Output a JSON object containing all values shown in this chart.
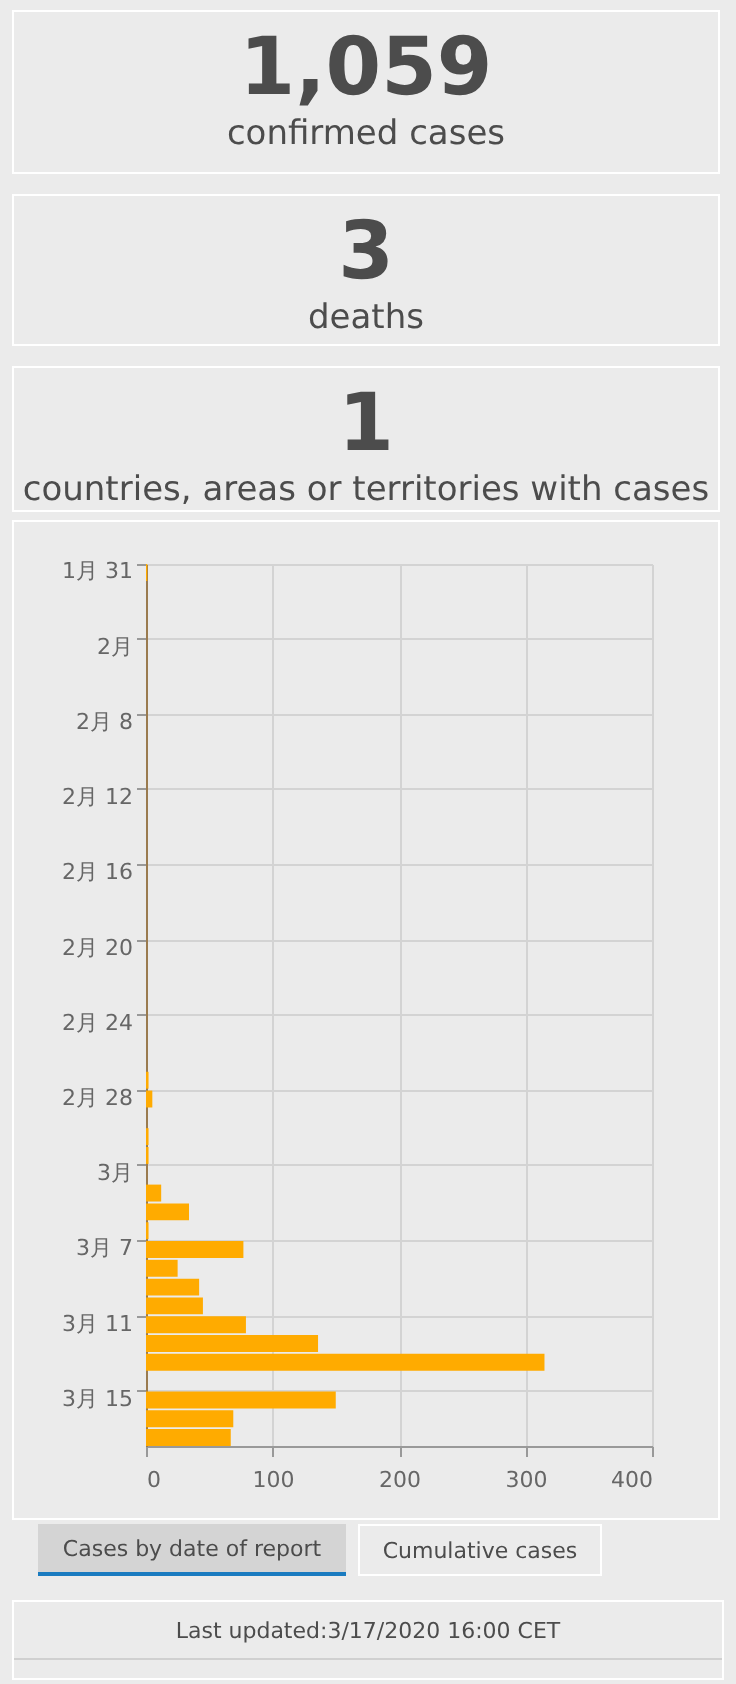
{
  "chart_data": [
    {
      "type": "other",
      "title": "1,059",
      "subtitle": "confirmed cases"
    },
    {
      "type": "other",
      "title": "3",
      "subtitle": "deaths"
    },
    {
      "type": "other",
      "title": "1",
      "subtitle": "countries, areas or territories with cases"
    },
    {
      "type": "bar",
      "orientation": "horizontal",
      "color": "#ffab00",
      "grid": true,
      "categories": [
        "1月 31",
        null,
        null,
        null,
        "2月",
        null,
        null,
        null,
        "2月 8",
        null,
        null,
        null,
        "2月 12",
        null,
        null,
        null,
        "2月 16",
        null,
        null,
        null,
        "2月 20",
        null,
        null,
        null,
        "2月 24",
        null,
        null,
        null,
        "2月 28",
        null,
        null,
        null,
        "3月",
        null,
        null,
        null,
        "3月 7",
        null,
        null,
        null,
        "3月 11",
        null,
        null,
        null,
        "3月 15",
        null,
        null
      ],
      "values": [
        1,
        null,
        null,
        null,
        null,
        null,
        null,
        null,
        null,
        null,
        null,
        null,
        null,
        null,
        null,
        null,
        null,
        null,
        null,
        null,
        null,
        null,
        null,
        null,
        null,
        null,
        null,
        2,
        5,
        null,
        2,
        2,
        null,
        12,
        34,
        2,
        77,
        25,
        42,
        45,
        79,
        136,
        315,
        null,
        150,
        69,
        67
      ],
      "xlim": [
        0,
        400
      ],
      "xticks": [
        0,
        100,
        200,
        300,
        400
      ],
      "annotations": [
        "Cases by date of report",
        "Cumulative cases",
        "Last updated:3/17/2020 16:00 CET"
      ]
    }
  ]
}
